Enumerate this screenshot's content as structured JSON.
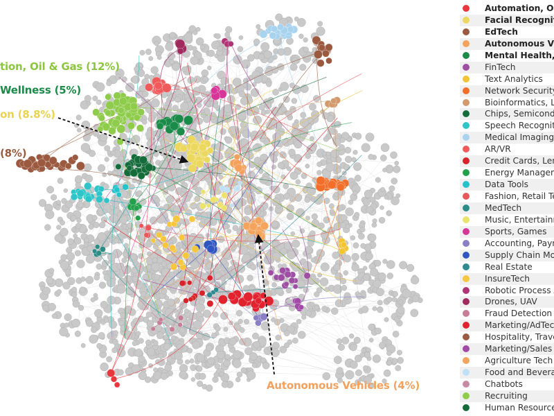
{
  "colors": {
    "node_default": "#c9c9c9",
    "node_stroke": "#a9a9a9",
    "edge": "#dddddd",
    "arrow": "#111111"
  },
  "legend": [
    {
      "label": "Automation, Oil &",
      "color": "#e8383d",
      "bold": true
    },
    {
      "label": "Facial Recognition",
      "color": "#ecd85f",
      "bold": true
    },
    {
      "label": "EdTech",
      "color": "#9b5a3f",
      "bold": true
    },
    {
      "label": "Autonomous Vehi",
      "color": "#f3a15c",
      "bold": true
    },
    {
      "label": "Mental Health, W",
      "color": "#1a8b48",
      "bold": true
    },
    {
      "label": "FinTech",
      "color": "#9e4fa4",
      "bold": false
    },
    {
      "label": "Text Analytics",
      "color": "#f3c534",
      "bold": false
    },
    {
      "label": "Network Security",
      "color": "#f26f2b",
      "bold": false
    },
    {
      "label": "Bioinformatics, Li",
      "color": "#d29a6d",
      "bold": false
    },
    {
      "label": "Chips, Semicond",
      "color": "#136c3a",
      "bold": false
    },
    {
      "label": "Speech Recogniti",
      "color": "#2ec5c9",
      "bold": false
    },
    {
      "label": "Medical Imaging",
      "color": "#a8d3ef",
      "bold": false
    },
    {
      "label": "AR/VR",
      "color": "#f05a5a",
      "bold": false
    },
    {
      "label": "Credit Cards, Len",
      "color": "#d7242b",
      "bold": false
    },
    {
      "label": "Energy Managem",
      "color": "#23a04c",
      "bold": false
    },
    {
      "label": "Data Tools",
      "color": "#22c3c9",
      "bold": false
    },
    {
      "label": "Fashion, Retail Te",
      "color": "#e8575a",
      "bold": false
    },
    {
      "label": "MedTech",
      "color": "#2c8d87",
      "bold": false
    },
    {
      "label": "Music, Entertainm",
      "color": "#ece36b",
      "bold": false
    },
    {
      "label": "Sports, Games",
      "color": "#d8359a",
      "bold": false
    },
    {
      "label": "Accounting, Paym",
      "color": "#8a7fc7",
      "bold": false
    },
    {
      "label": "Supply Chain Mo",
      "color": "#2f56c0",
      "bold": false
    },
    {
      "label": "Real Estate",
      "color": "#2e8990",
      "bold": false
    },
    {
      "label": "InsureTech",
      "color": "#f6c63d",
      "bold": false
    },
    {
      "label": "Robotic Process A",
      "color": "#b03476",
      "bold": false
    },
    {
      "label": "Drones, UAV",
      "color": "#a0295e",
      "bold": false
    },
    {
      "label": "Fraud Detection",
      "color": "#c77d96",
      "bold": false
    },
    {
      "label": "Marketing/AdTec",
      "color": "#e2222e",
      "bold": false
    },
    {
      "label": "Hospitality, Trave",
      "color": "#9b5a3f",
      "bold": false
    },
    {
      "label": "Marketing/Sales",
      "color": "#a24aa8",
      "bold": false
    },
    {
      "label": "Agriculture Tech",
      "color": "#f4a45c",
      "bold": false
    },
    {
      "label": "Food and Bevera",
      "color": "#bfe0f5",
      "bold": false
    },
    {
      "label": "Chatbots",
      "color": "#c68aa2",
      "bold": false
    },
    {
      "label": "Recruiting",
      "color": "#8fcc4b",
      "bold": false
    },
    {
      "label": "Human Resources",
      "color": "#136c3a",
      "bold": false
    }
  ],
  "callouts": {
    "automation": {
      "text": "tion, Oil & Gas (12%)",
      "color": "#8cc63f"
    },
    "mental_health": {
      "text": "Wellness (5%)",
      "color": "#1a8b48"
    },
    "facial": {
      "text": "on (8.8%)",
      "color": "#e9d34d"
    },
    "edtech": {
      "text": "(8%)",
      "color": "#9b5a3f"
    },
    "autonomous": {
      "text": "Autonomous Vehicles (4%)",
      "color": "#f3a15c"
    }
  }
}
